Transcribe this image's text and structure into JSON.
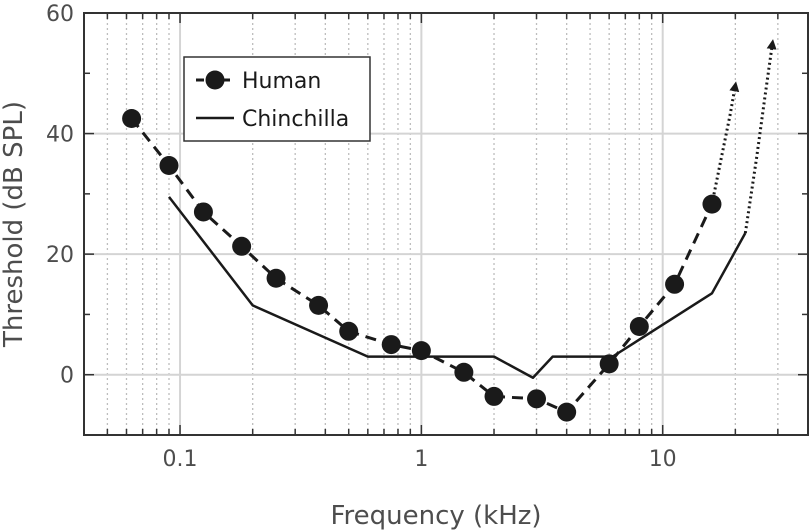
{
  "chart_data": {
    "type": "line",
    "xlabel": "Frequency (kHz)",
    "ylabel": "Threshold (dB SPL)",
    "x_scale": "log",
    "xlim": [
      0.04,
      40
    ],
    "ylim": [
      -10,
      60
    ],
    "x_ticks": [
      {
        "value": 0.1,
        "label": "0.1"
      },
      {
        "value": 1,
        "label": "1"
      },
      {
        "value": 10,
        "label": "10"
      }
    ],
    "y_ticks": [
      {
        "value": 0,
        "label": "0"
      },
      {
        "value": 20,
        "label": "20"
      },
      {
        "value": 40,
        "label": "40"
      },
      {
        "value": 60,
        "label": "60"
      }
    ],
    "grid": true,
    "legend_position": "top-left",
    "series": [
      {
        "name": "Human",
        "style": "dashed-with-markers",
        "color": "#1a1a1a",
        "points": [
          {
            "x": 0.063,
            "y": 42.5
          },
          {
            "x": 0.09,
            "y": 34.7
          },
          {
            "x": 0.125,
            "y": 27.0
          },
          {
            "x": 0.18,
            "y": 21.3
          },
          {
            "x": 0.25,
            "y": 16.0
          },
          {
            "x": 0.375,
            "y": 11.5
          },
          {
            "x": 0.5,
            "y": 7.2
          },
          {
            "x": 0.75,
            "y": 5.0
          },
          {
            "x": 1.0,
            "y": 4.0
          },
          {
            "x": 1.5,
            "y": 0.4
          },
          {
            "x": 2.0,
            "y": -3.6
          },
          {
            "x": 3.0,
            "y": -4.0
          },
          {
            "x": 4.0,
            "y": -6.2
          },
          {
            "x": 6.0,
            "y": 1.8
          },
          {
            "x": 8.0,
            "y": 8.0
          },
          {
            "x": 11.2,
            "y": 15.0
          },
          {
            "x": 16.0,
            "y": 28.3
          }
        ],
        "extension": {
          "style": "dotted-arrow",
          "points": [
            {
              "x": 16.0,
              "y": 28.3
            },
            {
              "x": 17.5,
              "y": 36.0
            },
            {
              "x": 19.0,
              "y": 43.0
            },
            {
              "x": 20.0,
              "y": 48.0
            }
          ]
        }
      },
      {
        "name": "Chinchilla",
        "style": "solid",
        "color": "#1a1a1a",
        "points": [
          {
            "x": 0.09,
            "y": 29.5
          },
          {
            "x": 0.2,
            "y": 11.5
          },
          {
            "x": 0.6,
            "y": 3.0
          },
          {
            "x": 2.0,
            "y": 3.0
          },
          {
            "x": 2.9,
            "y": -0.5
          },
          {
            "x": 3.5,
            "y": 3.0
          },
          {
            "x": 6.2,
            "y": 3.0
          },
          {
            "x": 16.0,
            "y": 13.5
          },
          {
            "x": 22.0,
            "y": 23.5
          }
        ],
        "extension": {
          "style": "dotted-arrow",
          "points": [
            {
              "x": 22.0,
              "y": 23.5
            },
            {
              "x": 24.5,
              "y": 36.0
            },
            {
              "x": 26.5,
              "y": 46.0
            },
            {
              "x": 28.5,
              "y": 55.0
            }
          ]
        }
      }
    ]
  }
}
